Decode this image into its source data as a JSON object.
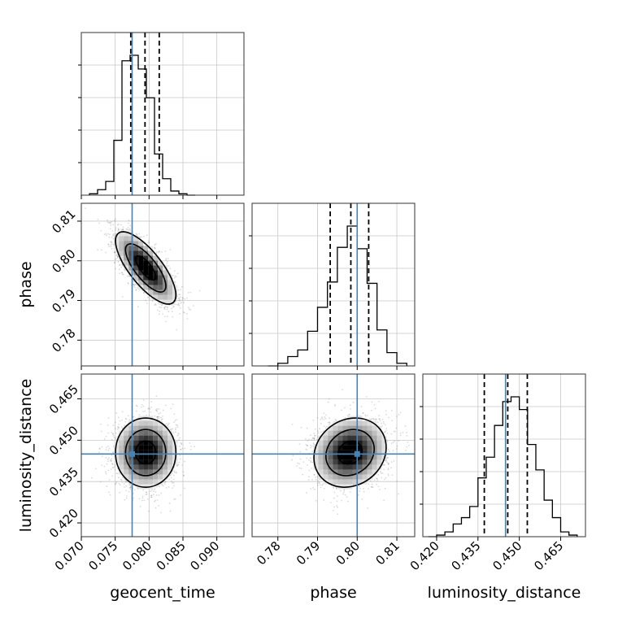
{
  "chart_data": {
    "type": "corner",
    "parameters": [
      "geocent_time",
      "phase",
      "luminosity_distance"
    ],
    "truths": {
      "geocent_time": 0.0775,
      "phase": 0.8,
      "luminosity_distance": 0.445
    },
    "truth_color": "#4682b4",
    "grid": true,
    "axes": {
      "geocent_time": {
        "xlabel": "geocent_time",
        "range": [
          0.07,
          0.094
        ],
        "ticks": [
          0.07,
          0.075,
          0.08,
          0.085,
          0.09
        ],
        "tick_labels": [
          "0.070",
          "0.075",
          "0.080",
          "0.085",
          "0.090"
        ]
      },
      "phase": {
        "xlabel": "phase",
        "ylabel": "phase",
        "range": [
          0.7735,
          0.8145
        ],
        "ticks": [
          0.78,
          0.79,
          0.8,
          0.81
        ],
        "tick_labels": [
          "0.78",
          "0.79",
          "0.80",
          "0.81"
        ]
      },
      "luminosity_distance": {
        "xlabel": "luminosity_distance",
        "ylabel": "luminosity_distance",
        "range": [
          0.415,
          0.474
        ],
        "ticks": [
          0.42,
          0.435,
          0.45,
          0.465
        ],
        "tick_labels": [
          "0.420",
          "0.435",
          "0.450",
          "0.465"
        ]
      }
    },
    "histograms": {
      "geocent_time": {
        "bin_edges": [
          0.0712,
          0.0724,
          0.0736,
          0.0748,
          0.076,
          0.0772,
          0.0784,
          0.0796,
          0.0808,
          0.082,
          0.0832,
          0.0844,
          0.0856,
          0.0868
        ],
        "counts": [
          1,
          4,
          10,
          40,
          98,
          102,
          92,
          71,
          30,
          12,
          3,
          1,
          0
        ],
        "quantiles": [
          0.0773,
          0.0794,
          0.0815
        ]
      },
      "phase": {
        "bin_edges": [
          0.7775,
          0.78,
          0.7825,
          0.785,
          0.7875,
          0.79,
          0.7925,
          0.795,
          0.7975,
          0.8,
          0.8025,
          0.805,
          0.8075,
          0.81,
          0.8125
        ],
        "counts": [
          0,
          2,
          7,
          12,
          26,
          44,
          63,
          89,
          105,
          88,
          62,
          27,
          10,
          2
        ],
        "quantiles": [
          0.7932,
          0.7984,
          0.8029
        ]
      },
      "luminosity_distance": {
        "bin_edges": [
          0.417,
          0.42,
          0.423,
          0.426,
          0.429,
          0.432,
          0.435,
          0.438,
          0.441,
          0.444,
          0.447,
          0.45,
          0.453,
          0.456,
          0.459,
          0.462,
          0.465,
          0.468,
          0.471
        ],
        "counts": [
          0,
          1,
          3,
          8,
          12,
          19,
          37,
          50,
          70,
          85,
          88,
          80,
          58,
          42,
          23,
          12,
          3,
          1
        ],
        "quantiles": [
          0.4373,
          0.4458,
          0.4529
        ]
      }
    },
    "scatter_2d": {
      "phase_vs_geocent_time": {
        "center": [
          0.0795,
          0.7982
        ],
        "std": [
          0.0022,
          0.0045
        ],
        "correlation": -0.75
      },
      "luminosity_distance_vs_geocent_time": {
        "center": [
          0.0795,
          0.4455
        ],
        "std": [
          0.0022,
          0.0062
        ],
        "correlation": 0.0
      },
      "luminosity_distance_vs_phase": {
        "center": [
          0.7982,
          0.4455
        ],
        "std": [
          0.0045,
          0.0062
        ],
        "correlation": 0.15
      }
    }
  }
}
